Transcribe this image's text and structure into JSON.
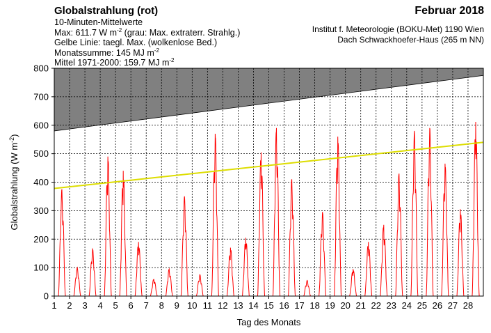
{
  "header": {
    "title": "Globalstrahlung (rot)",
    "line1": "10-Minuten-Mittelwerte",
    "max_prefix": "Max:  611.7 W m",
    "max_exp": "-2",
    "max_suffix": "  (grau: Max. extraterr. Strahlg.)",
    "yellow_line": "Gelbe Linie: taegl. Max. (wolkenlose Bed.)",
    "sum_prefix": "Monatssumme:  145 MJ m",
    "sum_exp": "-2",
    "mean_prefix": "Mittel 1971-2000:  159.7 MJ m",
    "mean_exp": "-2",
    "month": "Februar 2018",
    "institute": "Institut f. Meteorologie (BOKU-Met) 1190 Wien",
    "location": "Dach Schwackhoefer-Haus (265 m NN)"
  },
  "chart_data": {
    "type": "line",
    "xlabel": "Tag des Monats",
    "ylabel_prefix": "Globalstrahlung (W m",
    "ylabel_exp": "-2",
    "ylabel_suffix": ")",
    "xlim": [
      1,
      29
    ],
    "ylim": [
      0,
      800
    ],
    "x_ticks": [
      "1",
      "2",
      "3",
      "4",
      "5",
      "6",
      "7",
      "8",
      "9",
      "10",
      "11",
      "12",
      "13",
      "14",
      "15",
      "16",
      "17",
      "18",
      "19",
      "20",
      "21",
      "22",
      "23",
      "24",
      "25",
      "26",
      "27",
      "28"
    ],
    "y_ticks": [
      "0",
      "100",
      "200",
      "300",
      "400",
      "500",
      "600",
      "700",
      "800"
    ],
    "grid": true,
    "colors": {
      "global_radiation": "#ff0000",
      "clear_sky_max": "#dddd00",
      "extraterrestrial_max": "#808080"
    },
    "series": [
      {
        "key": "extraterrestrial_max",
        "type": "area",
        "x": [
          1,
          29
        ],
        "values": [
          580,
          775
        ]
      },
      {
        "key": "clear_sky_max",
        "type": "line",
        "x": [
          1,
          29
        ],
        "values": [
          378,
          540
        ]
      },
      {
        "key": "global_radiation",
        "type": "daily_peaks",
        "x": [
          1.5,
          2.5,
          3.5,
          4.5,
          5.5,
          6.5,
          7.5,
          8.5,
          9.5,
          10.5,
          11.5,
          12.5,
          13.5,
          14.5,
          15.5,
          16.5,
          17.5,
          18.5,
          19.5,
          20.5,
          21.5,
          22.5,
          23.5,
          24.5,
          25.5,
          26.5,
          27.5,
          28.5
        ],
        "values": [
          375,
          100,
          165,
          490,
          440,
          190,
          60,
          95,
          350,
          75,
          570,
          170,
          205,
          505,
          590,
          410,
          55,
          295,
          560,
          95,
          190,
          250,
          430,
          580,
          590,
          465,
          305,
          611.7
        ]
      }
    ]
  }
}
